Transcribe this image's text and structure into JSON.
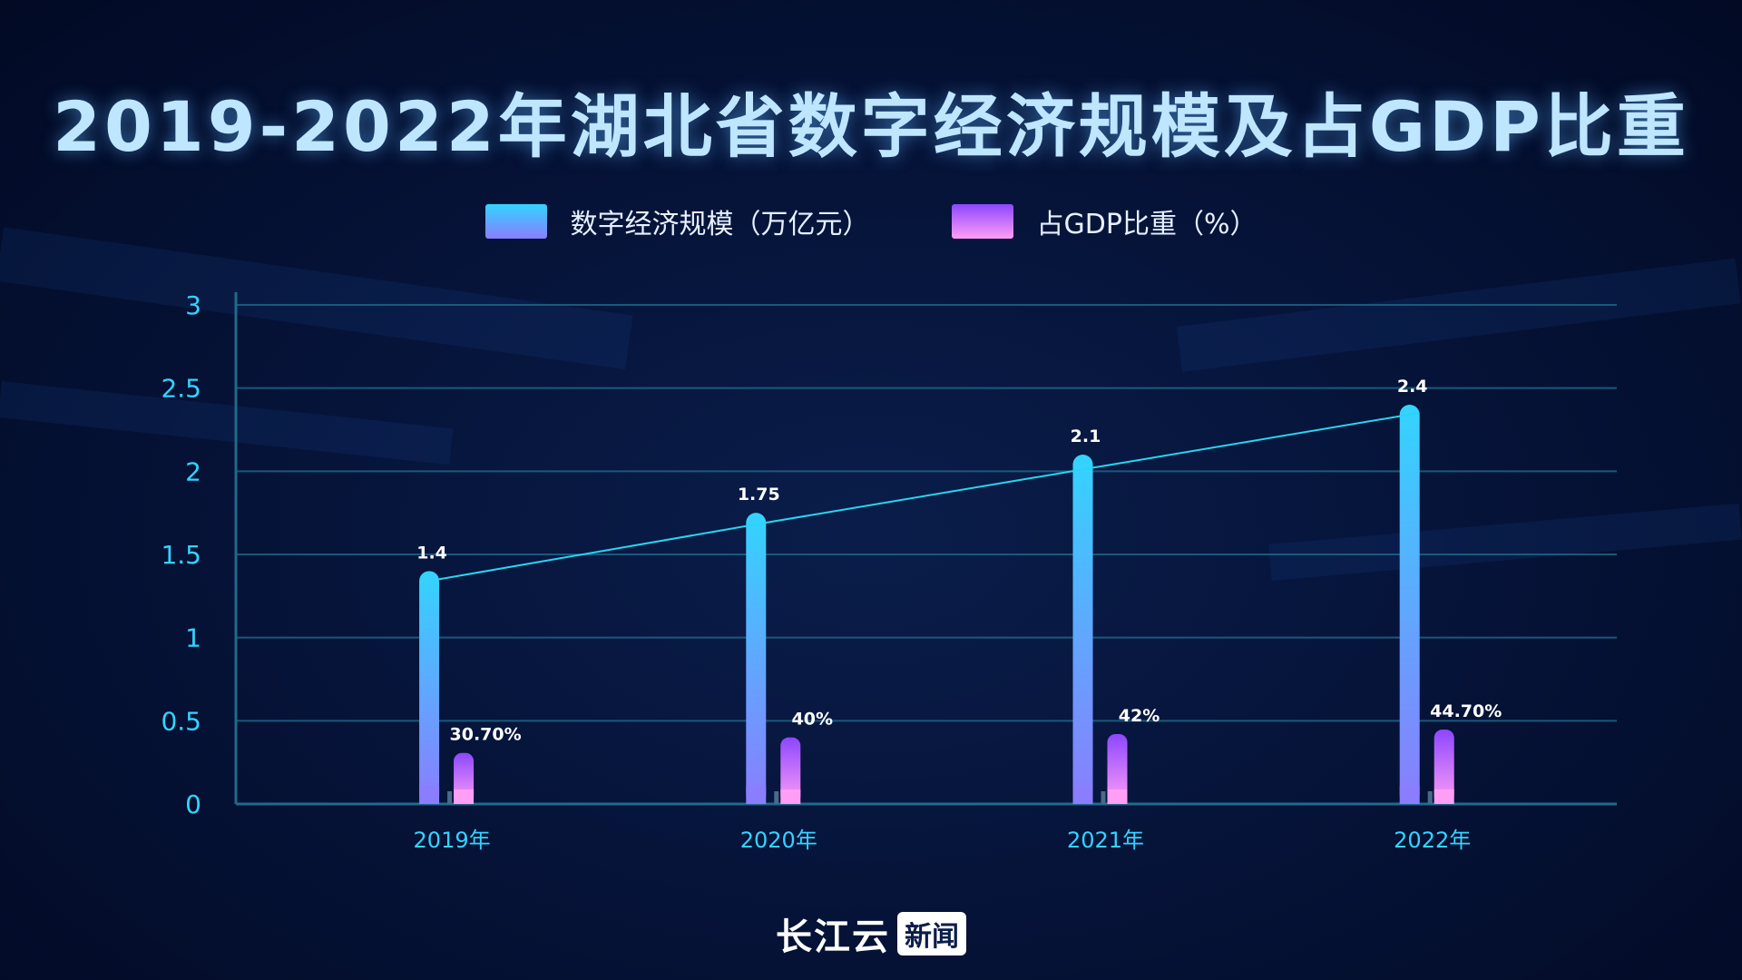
{
  "title": "2019-2022年湖北省数字经济规模及占GDP比重",
  "brand": {
    "main": "长江云",
    "box": "新闻"
  },
  "colors": {
    "bar1_top": "#33d4ff",
    "bar1_bottom": "#8a7dff",
    "bar2_top": "#8c47ff",
    "bar2_bottom": "#ff9ef5",
    "axis_text": "#33d4ff",
    "grid": "#1f6a8a",
    "line": "#27d6f2",
    "label": "#ffffff"
  },
  "chart_data": {
    "type": "bar",
    "categories": [
      "2019年",
      "2020年",
      "2021年",
      "2022年"
    ],
    "series": [
      {
        "name": "数字经济规模（万亿元）",
        "values": [
          1.4,
          1.75,
          2.1,
          2.4
        ],
        "labels": [
          "1.4",
          "1.75",
          "2.1",
          "2.4"
        ]
      },
      {
        "name": "占GDP比重（%）",
        "values": [
          0.307,
          0.4,
          0.42,
          0.447
        ],
        "labels": [
          "30.70%",
          "40%",
          "42%",
          "44.70%"
        ]
      }
    ],
    "trend_line": {
      "series": 0,
      "values": [
        1.35,
        1.69,
        2.02,
        2.35
      ]
    },
    "yticks": [
      "0",
      "0.5",
      "1",
      "1.5",
      "2",
      "2.5",
      "3"
    ],
    "ylim": [
      0,
      3
    ],
    "grid": true,
    "legend": "top-center"
  }
}
